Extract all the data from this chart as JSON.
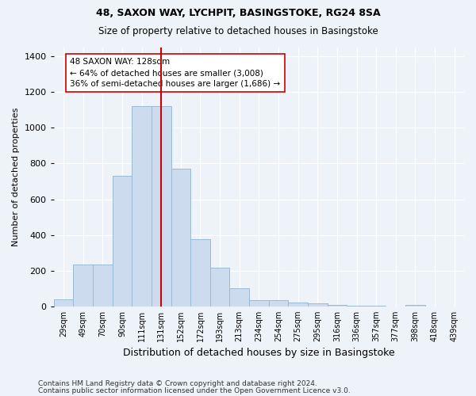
{
  "title1": "48, SAXON WAY, LYCHPIT, BASINGSTOKE, RG24 8SA",
  "title2": "Size of property relative to detached houses in Basingstoke",
  "xlabel": "Distribution of detached houses by size in Basingstoke",
  "ylabel": "Number of detached properties",
  "categories": [
    "29sqm",
    "49sqm",
    "70sqm",
    "90sqm",
    "111sqm",
    "131sqm",
    "152sqm",
    "172sqm",
    "193sqm",
    "213sqm",
    "234sqm",
    "254sqm",
    "275sqm",
    "295sqm",
    "316sqm",
    "336sqm",
    "357sqm",
    "377sqm",
    "398sqm",
    "418sqm",
    "439sqm"
  ],
  "values": [
    40,
    235,
    235,
    730,
    1120,
    1120,
    770,
    375,
    215,
    100,
    35,
    35,
    20,
    15,
    10,
    5,
    5,
    0,
    10,
    0,
    0
  ],
  "bar_color": "#ccdcee",
  "bar_edge_color": "#9bbad4",
  "vline_x": 5,
  "vline_color": "#cc0000",
  "annotation_text": "48 SAXON WAY: 128sqm\n← 64% of detached houses are smaller (3,008)\n36% of semi-detached houses are larger (1,686) →",
  "annotation_box_color": "#ffffff",
  "annotation_box_edge": "#cc0000",
  "ylim": [
    0,
    1450
  ],
  "yticks": [
    0,
    200,
    400,
    600,
    800,
    1000,
    1200,
    1400
  ],
  "footer1": "Contains HM Land Registry data © Crown copyright and database right 2024.",
  "footer2": "Contains public sector information licensed under the Open Government Licence v3.0.",
  "bg_color": "#eef2f9",
  "plot_bg_color": "#eef2f9",
  "title_fontsize": 9,
  "subtitle_fontsize": 8.5,
  "ylabel_fontsize": 8,
  "xlabel_fontsize": 9
}
